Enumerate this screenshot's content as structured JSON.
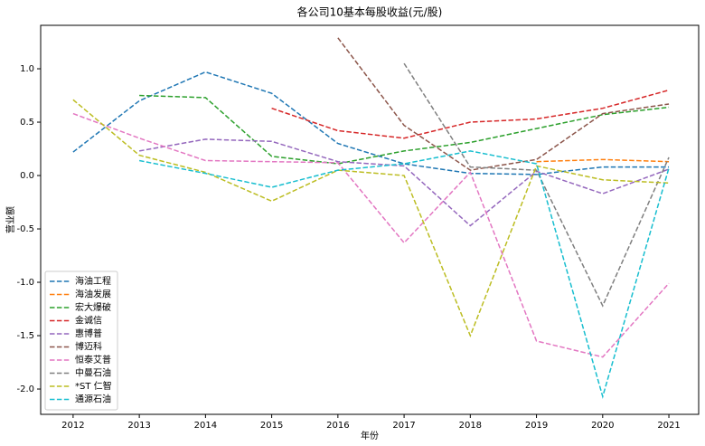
{
  "chart_data": {
    "type": "line",
    "title": "各公司10基本每股收益(元/股)",
    "x_label": "年份",
    "y_label": "营业额",
    "x": [
      2012,
      2013,
      2014,
      2015,
      2016,
      2017,
      2018,
      2019,
      2020,
      2021
    ],
    "xlim": [
      2011.51,
      2021.45
    ],
    "xticks": [
      2012,
      2013,
      2014,
      2015,
      2016,
      2017,
      2018,
      2019,
      2020,
      2021
    ],
    "ylim": [
      -2.237,
      1.407
    ],
    "yticks": [
      {
        "value": -2,
        "label": "-2.0"
      },
      -1.5,
      {
        "value": -1,
        "label": "-1.0"
      },
      -0.5,
      {
        "value": 0,
        "label": "0.0"
      },
      0.5,
      {
        "value": 1,
        "label": "1.0"
      }
    ],
    "legend": "lower left",
    "dashed": true,
    "series": [
      {
        "name": "海油工程",
        "color": "#1f77b4",
        "values": [
          0.22,
          0.7,
          0.97,
          0.77,
          0.3,
          0.11,
          0.02,
          0.01,
          0.08,
          0.08
        ]
      },
      {
        "name": "海油发展",
        "color": "#ff7f0e",
        "values": [
          null,
          null,
          null,
          null,
          null,
          null,
          null,
          0.13,
          0.15,
          0.13
        ]
      },
      {
        "name": "宏大爆破",
        "color": "#2ca02c",
        "values": [
          null,
          0.75,
          0.73,
          0.18,
          0.11,
          0.23,
          0.31,
          0.44,
          0.57,
          0.64
        ]
      },
      {
        "name": "金诚信",
        "color": "#d62728",
        "values": [
          null,
          null,
          null,
          0.63,
          0.42,
          0.35,
          0.5,
          0.53,
          0.63,
          0.8
        ]
      },
      {
        "name": "惠博普",
        "color": "#9467bd",
        "values": [
          null,
          0.23,
          0.34,
          0.32,
          0.13,
          0.09,
          -0.47,
          0.04,
          -0.17,
          0.06
        ]
      },
      {
        "name": "博迈科",
        "color": "#8c564b",
        "values": [
          null,
          null,
          null,
          null,
          1.29,
          0.47,
          0.05,
          0.15,
          0.58,
          0.67
        ]
      },
      {
        "name": "恒泰艾普",
        "color": "#e377c2",
        "values": [
          0.58,
          0.35,
          0.14,
          0.13,
          0.12,
          -0.63,
          0.03,
          -1.55,
          -1.7,
          -1.01
        ]
      },
      {
        "name": "中曼石油",
        "color": "#7f7f7f",
        "values": [
          null,
          null,
          null,
          null,
          null,
          1.05,
          0.08,
          0.05,
          -1.22,
          0.17
        ]
      },
      {
        "name": "*ST 仁智",
        "color": "#bcbd22",
        "values": [
          0.71,
          0.19,
          0.03,
          -0.24,
          0.05,
          0.0,
          -1.5,
          0.09,
          -0.04,
          -0.07
        ]
      },
      {
        "name": "通源石油",
        "color": "#17becf",
        "values": [
          null,
          0.14,
          0.02,
          -0.11,
          0.05,
          0.11,
          0.23,
          0.11,
          -2.07,
          0.07
        ]
      }
    ]
  }
}
